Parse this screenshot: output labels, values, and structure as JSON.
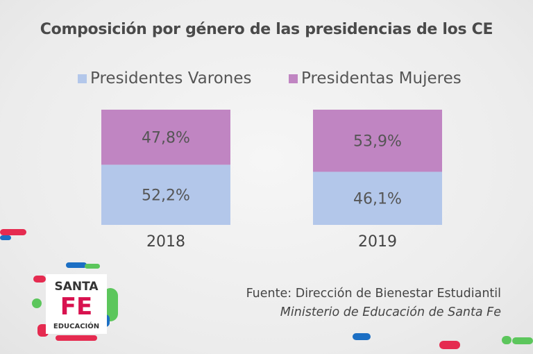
{
  "chart_data": {
    "type": "bar",
    "stacked": true,
    "normalized": true,
    "title": "Composición por género de las presidencias de los CE",
    "categories": [
      "2018",
      "2019"
    ],
    "series": [
      {
        "name": "Presidentes Varones",
        "values": [
          52.2,
          46.1
        ],
        "labels": [
          "52,2%",
          "46,1%"
        ],
        "color": "#b3c7ea"
      },
      {
        "name": "Presidentas Mujeres",
        "values": [
          47.8,
          53.9
        ],
        "labels": [
          "47,8%",
          "53,9%"
        ],
        "color": "#c085c2"
      }
    ],
    "ylim": [
      0,
      100
    ],
    "legend_position": "top",
    "grid": false
  },
  "source": {
    "line1": "Fuente: Dirección de Bienestar Estudiantil",
    "line2": "Ministerio de Educación de Santa Fe"
  },
  "logo": {
    "line1": "SANTA",
    "line2": "FE",
    "line3": "EDUCACIÓN"
  },
  "colors": {
    "accent_red": "#e52b50",
    "accent_blue": "#1c6fc4",
    "accent_green": "#5cc65c",
    "logo_red": "#d8124f"
  }
}
